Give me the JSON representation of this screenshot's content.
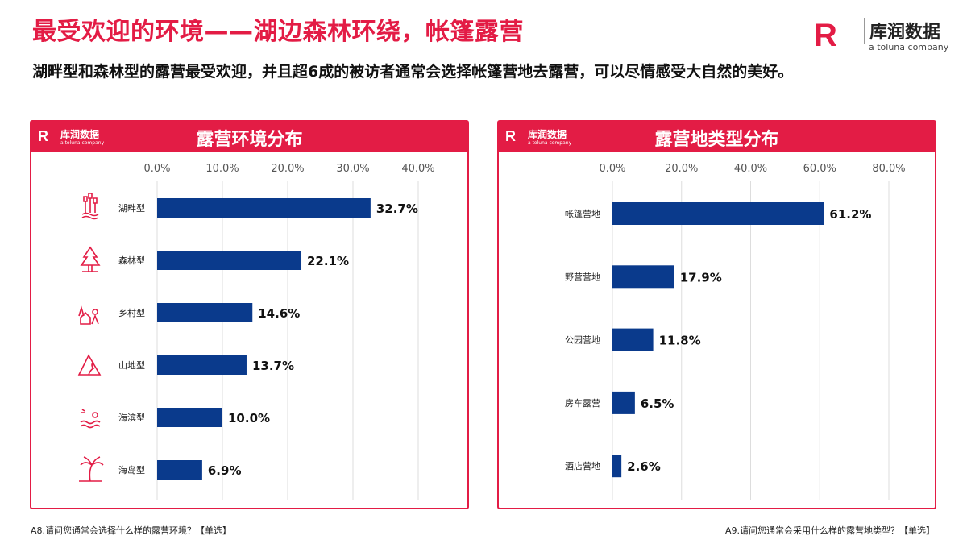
{
  "header": {
    "title": "最受欢迎的环境——湖边森林环绕，帐篷露营",
    "subtitle": "湖畔型和森林型的露营最受欢迎，并且超6成的被访者通常会选择帐篷营地去露营，可以尽情感受大自然的美好。"
  },
  "logo": {
    "mark": "R",
    "name_cn": "库润数据",
    "name_en": "a toluna company"
  },
  "colors": {
    "accent": "#e31c45",
    "bar": "#0a3a8c"
  },
  "chart_data": [
    {
      "type": "bar",
      "orientation": "horizontal",
      "title": "露营环境分布",
      "categories": [
        "湖畔型",
        "森林型",
        "乡村型",
        "山地型",
        "海滨型",
        "海岛型"
      ],
      "values": [
        32.7,
        22.1,
        14.6,
        13.7,
        10.0,
        6.9
      ],
      "data_labels": [
        "32.7%",
        "22.1%",
        "14.6%",
        "13.7%",
        "10.0%",
        "6.9%"
      ],
      "icons": [
        "reeds-water-icon",
        "pine-tree-icon",
        "village-house-icon",
        "mountain-road-icon",
        "seaside-sun-icon",
        "palm-island-icon"
      ],
      "xlim": [
        0,
        40
      ],
      "ticks": [
        "0.0%",
        "10.0%",
        "20.0%",
        "30.0%",
        "40.0%"
      ],
      "tick_values": [
        0,
        10,
        20,
        30,
        40
      ],
      "axis_position": "top",
      "grid": true,
      "footnote": "A8.请问您通常会选择什么样的露营环境？【单选】"
    },
    {
      "type": "bar",
      "orientation": "horizontal",
      "title": "露营地类型分布",
      "categories": [
        "帐篷营地",
        "野营营地",
        "公园营地",
        "房车露营",
        "酒店营地"
      ],
      "values": [
        61.2,
        17.9,
        11.8,
        6.5,
        2.6
      ],
      "data_labels": [
        "61.2%",
        "17.9%",
        "11.8%",
        "6.5%",
        "2.6%"
      ],
      "xlim": [
        0,
        80
      ],
      "ticks": [
        "0.0%",
        "20.0%",
        "40.0%",
        "60.0%",
        "80.0%"
      ],
      "tick_values": [
        0,
        20,
        40,
        60,
        80
      ],
      "axis_position": "top",
      "grid": true,
      "footnote": "A9.请问您通常会采用什么样的露营地类型？【单选】"
    }
  ]
}
